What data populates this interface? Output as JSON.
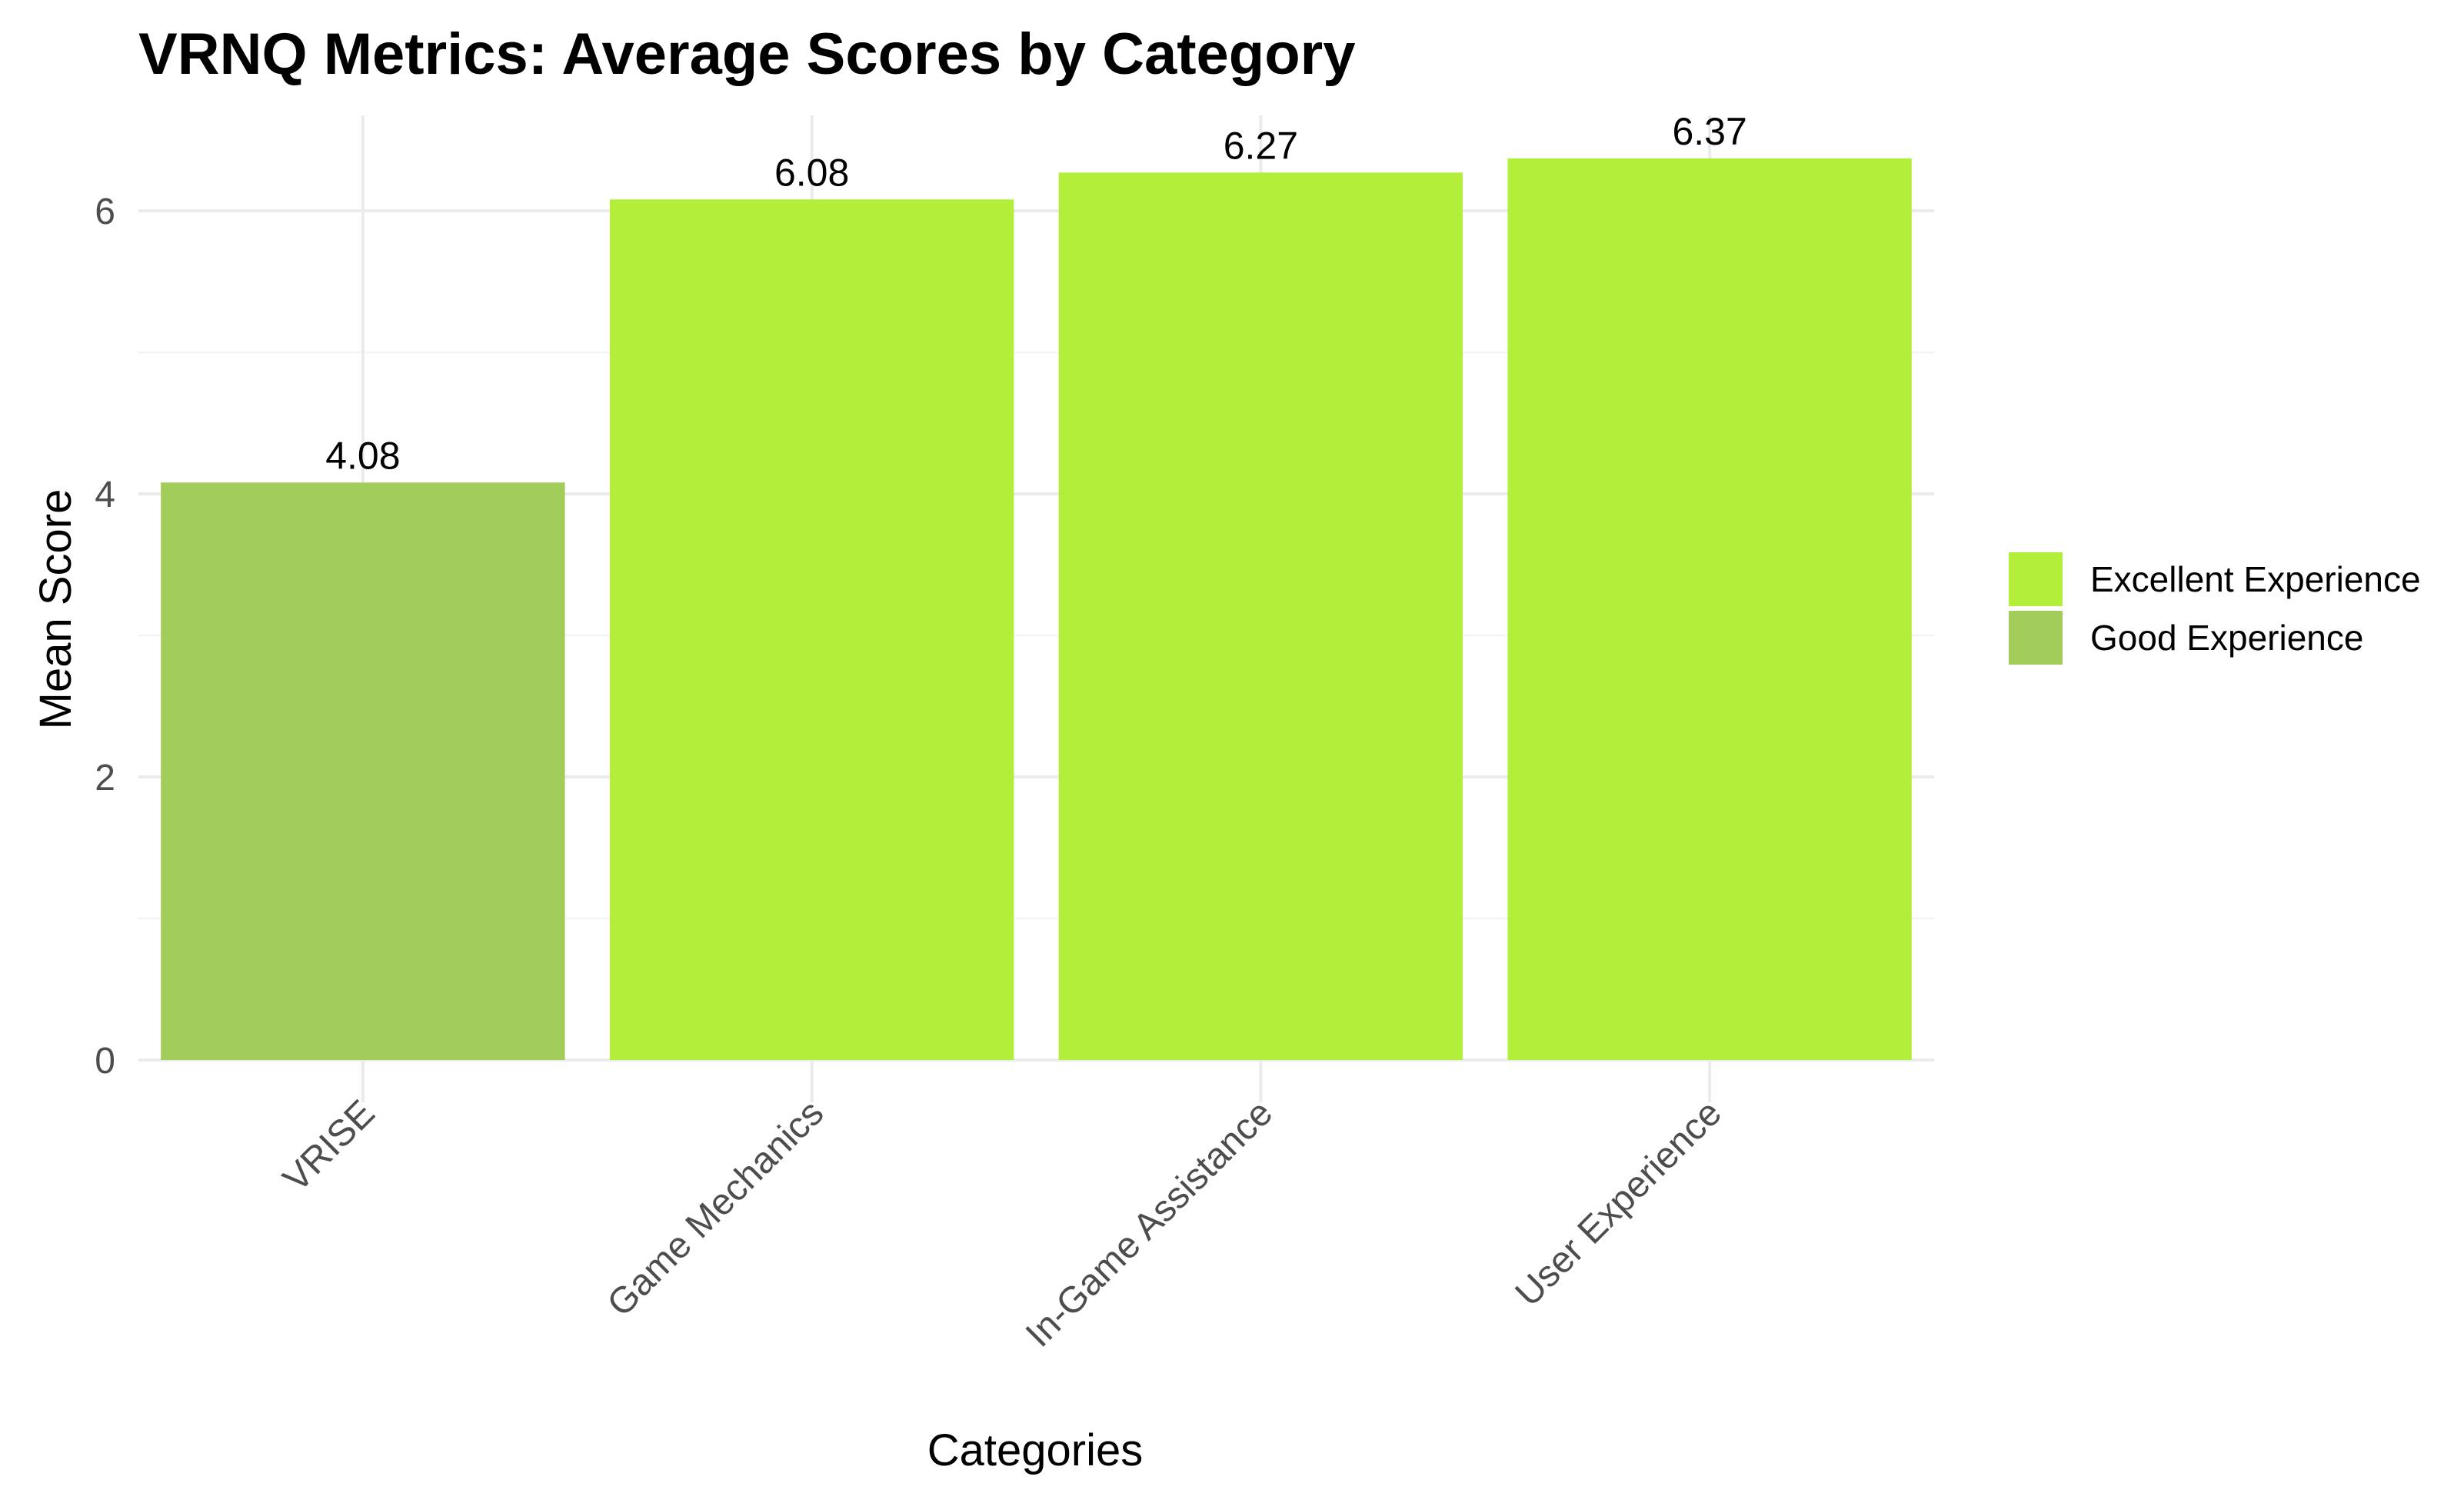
{
  "chart_data": {
    "type": "bar",
    "title": "VRNQ Metrics: Average Scores by Category",
    "xlabel": "Categories",
    "ylabel": "Mean Score",
    "categories": [
      "VRISE",
      "Game Mechanics",
      "In-Game Assistance",
      "User Experience"
    ],
    "values": [
      4.08,
      6.08,
      6.27,
      6.37
    ],
    "value_labels": [
      "4.08",
      "6.08",
      "6.27",
      "6.37"
    ],
    "groups": [
      "Good Experience",
      "Excellent Experience",
      "Excellent Experience",
      "Excellent Experience"
    ],
    "ylim": [
      0,
      6.6
    ],
    "yticks": [
      0,
      2,
      4,
      6
    ],
    "ytick_labels": [
      "0",
      "2",
      "4",
      "6"
    ],
    "grid": true,
    "legend": {
      "position": "right",
      "entries": [
        {
          "label": "Excellent Experience",
          "color": "#b3ee3a"
        },
        {
          "label": "Good Experience",
          "color": "#a2cd5a"
        }
      ]
    }
  }
}
